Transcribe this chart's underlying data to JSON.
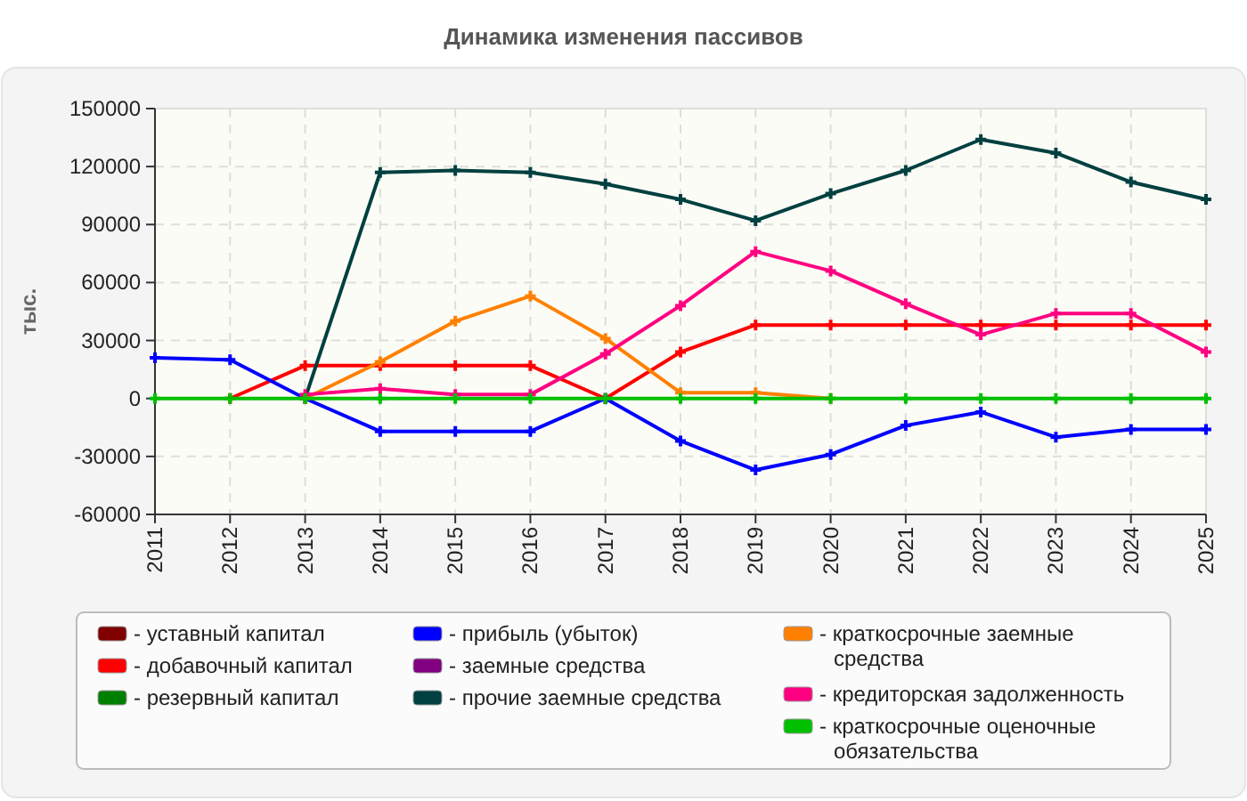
{
  "chart_data": {
    "type": "line",
    "title": "Динамика изменения пассивов",
    "ylabel": "тыс.",
    "categories": [
      "2011",
      "2012",
      "2013",
      "2014",
      "2015",
      "2016",
      "2017",
      "2018",
      "2019",
      "2020",
      "2021",
      "2022",
      "2023",
      "2024",
      "2025"
    ],
    "ylim": [
      -60000,
      150000
    ],
    "yticks": [
      -60000,
      -30000,
      0,
      30000,
      60000,
      90000,
      120000,
      150000
    ],
    "grid": true,
    "legend": "bottom",
    "marker": "cross",
    "line_style": "solid",
    "series": [
      {
        "name": "- уставный капитал",
        "color": "#800000",
        "values": [
          null,
          null,
          null,
          null,
          null,
          null,
          null,
          null,
          null,
          null,
          null,
          null,
          null,
          null,
          null
        ]
      },
      {
        "name": "- добавочный капитал",
        "color": "#ff0000",
        "values": [
          null,
          0,
          17000,
          17000,
          17000,
          17000,
          0,
          24000,
          38000,
          38000,
          38000,
          38000,
          38000,
          38000,
          38000
        ]
      },
      {
        "name": "- резервный капитал",
        "color": "#008000",
        "values": [
          null,
          null,
          null,
          null,
          null,
          null,
          null,
          null,
          null,
          null,
          null,
          null,
          null,
          null,
          null
        ]
      },
      {
        "name": "- прибыль (убыток)",
        "color": "#0000ff",
        "values": [
          21000,
          20000,
          0,
          -17000,
          -17000,
          -17000,
          0,
          -22000,
          -37000,
          -29000,
          -14000,
          -7000,
          -20000,
          -16000,
          -16000
        ]
      },
      {
        "name": "- заемные средства",
        "color": "#800080",
        "values": [
          null,
          null,
          null,
          null,
          null,
          null,
          null,
          null,
          null,
          null,
          null,
          null,
          null,
          null,
          null
        ]
      },
      {
        "name": "- прочие заемные средства",
        "color": "#004040",
        "values": [
          null,
          null,
          0,
          117000,
          118000,
          117000,
          111000,
          103000,
          92000,
          106000,
          118000,
          134000,
          127000,
          112000,
          103000
        ]
      },
      {
        "name": "- краткосрочные заемные средства",
        "color": "#ff8000",
        "values": [
          null,
          null,
          0,
          19000,
          40000,
          53000,
          31000,
          3000,
          3000,
          0,
          null,
          null,
          null,
          null,
          null
        ]
      },
      {
        "name": "- кредиторская задолженность",
        "color": "#ff0080",
        "values": [
          null,
          null,
          2000,
          5000,
          2000,
          2000,
          23000,
          48000,
          76000,
          66000,
          49000,
          33000,
          44000,
          44000,
          24000
        ]
      },
      {
        "name": "- краткосрочные оценочные обязательства",
        "color": "#00c000",
        "values": [
          0,
          0,
          0,
          0,
          0,
          0,
          0,
          0,
          0,
          0,
          0,
          0,
          0,
          0,
          0
        ]
      }
    ]
  }
}
